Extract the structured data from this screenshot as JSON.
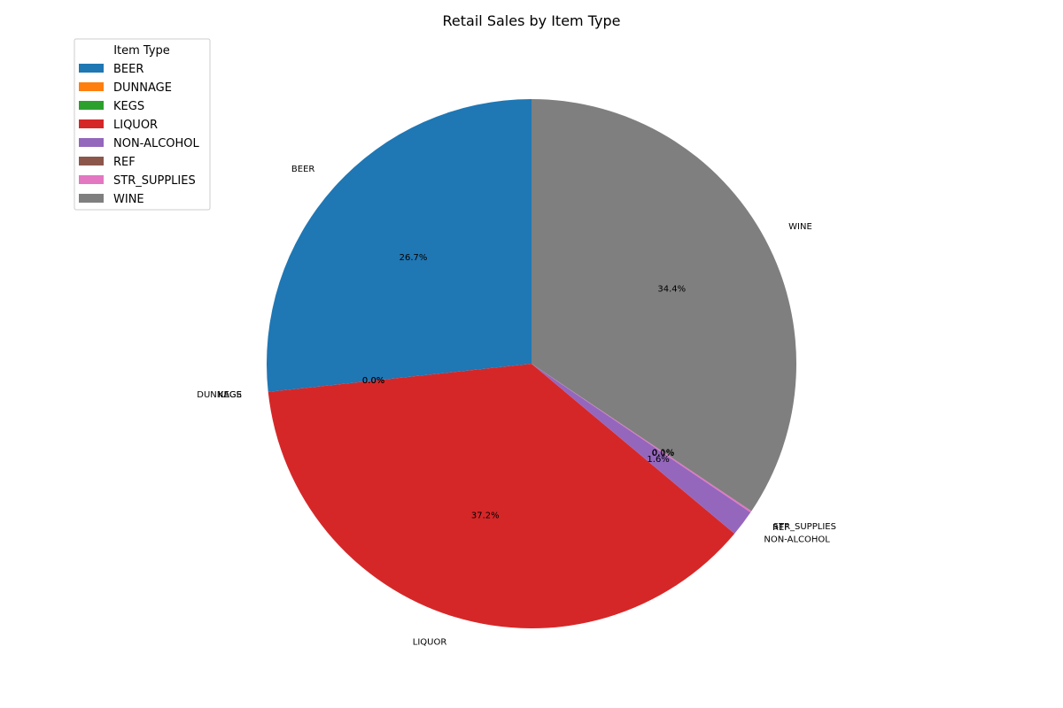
{
  "chart_data": {
    "type": "pie",
    "title": "Retail Sales by Item Type",
    "legend": {
      "title": "Item Type",
      "placement": "top-left"
    },
    "start_angle_deg": 90,
    "direction": "counterclockwise",
    "slices": [
      {
        "label": "BEER",
        "value": 26.7,
        "pct_text": "26.7%",
        "color": "#1f77b4"
      },
      {
        "label": "DUNNAGE",
        "value": 0.001,
        "pct_text": "0.0%",
        "color": "#ff7f0e"
      },
      {
        "label": "KEGS",
        "value": 0.001,
        "pct_text": "0.0%",
        "color": "#2ca02c"
      },
      {
        "label": "LIQUOR",
        "value": 37.2,
        "pct_text": "37.2%",
        "color": "#d62728"
      },
      {
        "label": "NON-ALCOHOL",
        "value": 1.6,
        "pct_text": "1.6%",
        "color": "#9467bd"
      },
      {
        "label": "REF",
        "value": 0.001,
        "pct_text": "0.0%",
        "color": "#8c564b"
      },
      {
        "label": "STR_SUPPLIES",
        "value": 0.1,
        "pct_text": "0.1%",
        "color": "#e377c2"
      },
      {
        "label": "WINE",
        "value": 34.4,
        "pct_text": "34.4%",
        "color": "#7f7f7f"
      }
    ]
  }
}
